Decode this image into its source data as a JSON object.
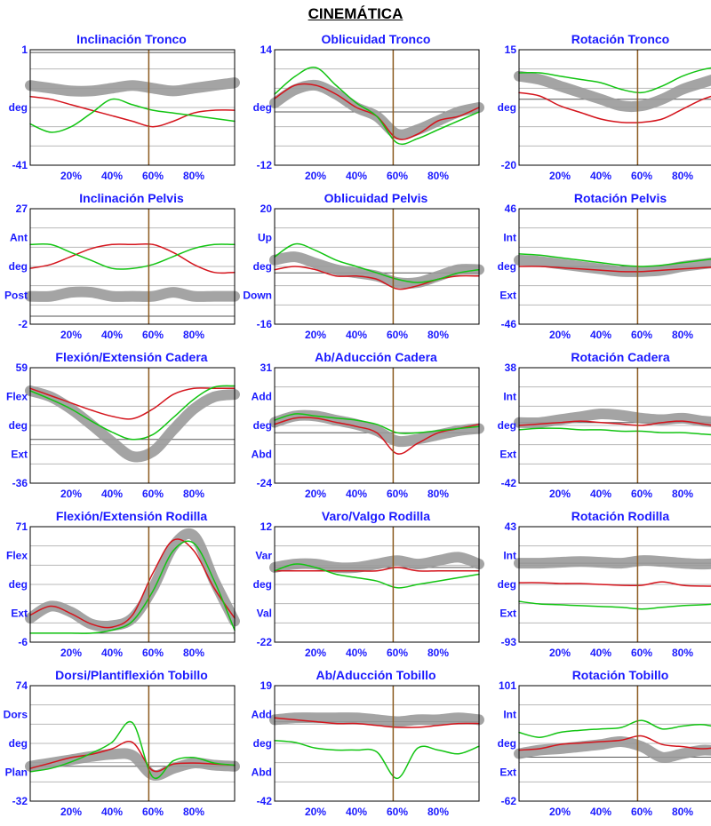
{
  "page": {
    "title": "CINEMÁTICA"
  },
  "colors": {
    "normal_band": "#9a9a9a",
    "left_side": "#d4141c",
    "right_side": "#12c412",
    "toe_off_marker": "#8b5a1e",
    "label_blue": "#1a1aff",
    "grid": "#b8b8b8"
  },
  "chart_data": [
    {
      "type": "line",
      "title": "Inclinación Tronco",
      "ylim": [
        -41,
        1
      ],
      "ylabels": [
        "1",
        "deg",
        "-41"
      ],
      "xticks": [
        "20%",
        "40%",
        "60%",
        "80%"
      ],
      "xlim": [
        0,
        100
      ],
      "marker_x": 58,
      "x": [
        0,
        10,
        20,
        30,
        40,
        50,
        60,
        70,
        80,
        90,
        100
      ],
      "series": [
        {
          "key": "normal",
          "values": [
            -12,
            -13,
            -14,
            -14,
            -13,
            -12,
            -13,
            -14,
            -13,
            -12,
            -11
          ]
        },
        {
          "key": "left",
          "values": [
            -16,
            -17,
            -19,
            -21,
            -23,
            -25,
            -27,
            -25,
            -22,
            -21,
            -21
          ]
        },
        {
          "key": "right",
          "values": [
            -26,
            -29,
            -27,
            -22,
            -17,
            -19,
            -21,
            -22,
            -23,
            -24,
            -25
          ]
        }
      ]
    },
    {
      "type": "line",
      "title": "Oblicuidad Tronco",
      "ylim": [
        -12,
        14
      ],
      "ylabels": [
        "14",
        "deg",
        "-12"
      ],
      "xticks": [
        "20%",
        "40%",
        "60%",
        "80%"
      ],
      "xlim": [
        0,
        100
      ],
      "marker_x": 58,
      "x": [
        0,
        10,
        20,
        30,
        40,
        50,
        60,
        70,
        80,
        90,
        100
      ],
      "series": [
        {
          "key": "normal",
          "values": [
            2,
            5,
            6,
            4,
            1,
            -1,
            -5,
            -4,
            -2,
            0,
            1
          ]
        },
        {
          "key": "left",
          "values": [
            3,
            6,
            6,
            4,
            1,
            -1,
            -6,
            -5,
            -2,
            -1,
            1
          ]
        },
        {
          "key": "right",
          "values": [
            4,
            8,
            10,
            6,
            2,
            -1,
            -7,
            -6,
            -4,
            -2,
            0
          ]
        }
      ]
    },
    {
      "type": "line",
      "title": "Rotación Tronco",
      "ylim": [
        -20,
        15
      ],
      "ylabels": [
        "15",
        "deg",
        "-20"
      ],
      "xticks": [
        "20%",
        "40%",
        "60%",
        "80%"
      ],
      "xlim": [
        0,
        100
      ],
      "marker_x": 58,
      "x": [
        0,
        10,
        20,
        30,
        40,
        50,
        60,
        70,
        80,
        90,
        100
      ],
      "series": [
        {
          "key": "normal",
          "values": [
            7,
            6,
            4,
            2,
            0,
            -2,
            -2,
            0,
            3,
            5,
            7
          ]
        },
        {
          "key": "left",
          "values": [
            2,
            1,
            -2,
            -4,
            -6,
            -7,
            -7,
            -6,
            -3,
            0,
            2
          ]
        },
        {
          "key": "right",
          "values": [
            8,
            8,
            7,
            6,
            5,
            3,
            2,
            4,
            7,
            9,
            10
          ]
        }
      ]
    },
    {
      "type": "line",
      "title": "Inclinación Pelvis",
      "ylim": [
        -2,
        27
      ],
      "ylabels": [
        "27",
        "Ant",
        "deg",
        "Post",
        "-2"
      ],
      "xticks": [
        "20%",
        "40%",
        "60%",
        "80%"
      ],
      "xlim": [
        0,
        100
      ],
      "marker_x": 58,
      "x": [
        0,
        10,
        20,
        30,
        40,
        50,
        60,
        70,
        80,
        90,
        100
      ],
      "series": [
        {
          "key": "normal",
          "values": [
            5,
            5,
            6,
            6,
            5,
            5,
            5,
            6,
            5,
            5,
            5
          ]
        },
        {
          "key": "left",
          "values": [
            12,
            13,
            15,
            17,
            18,
            18,
            18,
            16,
            13,
            11,
            11
          ]
        },
        {
          "key": "right",
          "values": [
            18,
            18,
            16,
            14,
            12,
            12,
            13,
            15,
            17,
            18,
            18
          ]
        }
      ]
    },
    {
      "type": "line",
      "title": "Oblicuidad Pelvis",
      "ylim": [
        -16,
        20
      ],
      "ylabels": [
        "20",
        "Up",
        "deg",
        "Down",
        "-16"
      ],
      "xticks": [
        "20%",
        "40%",
        "60%",
        "80%"
      ],
      "xlim": [
        0,
        100
      ],
      "marker_x": 58,
      "x": [
        0,
        10,
        20,
        30,
        40,
        50,
        60,
        70,
        80,
        90,
        100
      ],
      "series": [
        {
          "key": "normal",
          "values": [
            4,
            5,
            3,
            1,
            0,
            -1,
            -3,
            -3,
            -1,
            1,
            1
          ]
        },
        {
          "key": "left",
          "values": [
            1,
            2,
            1,
            -1,
            -1,
            -2,
            -5,
            -4,
            -2,
            -1,
            -1
          ]
        },
        {
          "key": "right",
          "values": [
            5,
            9,
            7,
            4,
            2,
            0,
            -2,
            -3,
            -2,
            0,
            1
          ]
        }
      ]
    },
    {
      "type": "line",
      "title": "Rotación Pelvis",
      "ylim": [
        -46,
        46
      ],
      "ylabels": [
        "46",
        "Int",
        "deg",
        "Ext",
        "-46"
      ],
      "xticks": [
        "20%",
        "40%",
        "60%",
        "80%"
      ],
      "xlim": [
        0,
        100
      ],
      "marker_x": 58,
      "x": [
        0,
        10,
        20,
        30,
        40,
        50,
        60,
        70,
        80,
        90,
        100
      ],
      "series": [
        {
          "key": "normal",
          "values": [
            5,
            4,
            2,
            0,
            -2,
            -4,
            -4,
            -3,
            0,
            2,
            4
          ]
        },
        {
          "key": "left",
          "values": [
            0,
            0,
            -1,
            -2,
            -3,
            -4,
            -4,
            -3,
            -2,
            -1,
            0
          ]
        },
        {
          "key": "right",
          "values": [
            10,
            9,
            7,
            5,
            3,
            1,
            0,
            1,
            3,
            5,
            7
          ]
        }
      ]
    },
    {
      "type": "line",
      "title": "Flexión/Extensión Cadera",
      "ylim": [
        -36,
        59
      ],
      "ylabels": [
        "59",
        "Flex",
        "deg",
        "Ext",
        "-36"
      ],
      "xticks": [
        "20%",
        "40%",
        "60%",
        "80%"
      ],
      "xlim": [
        0,
        100
      ],
      "marker_x": 58,
      "x": [
        0,
        10,
        20,
        30,
        40,
        50,
        60,
        70,
        80,
        90,
        100
      ],
      "series": [
        {
          "key": "normal",
          "values": [
            40,
            35,
            25,
            12,
            -2,
            -14,
            -10,
            8,
            25,
            35,
            37
          ]
        },
        {
          "key": "left",
          "values": [
            42,
            36,
            30,
            24,
            19,
            17,
            25,
            37,
            42,
            42,
            42
          ]
        },
        {
          "key": "right",
          "values": [
            40,
            33,
            25,
            15,
            6,
            0,
            4,
            18,
            33,
            43,
            44
          ]
        }
      ]
    },
    {
      "type": "line",
      "title": "Ab/Aducción Cadera",
      "ylim": [
        -24,
        31
      ],
      "ylabels": [
        "31",
        "Add",
        "deg",
        "Abd",
        "-24"
      ],
      "xticks": [
        "20%",
        "40%",
        "60%",
        "80%"
      ],
      "xlim": [
        0,
        100
      ],
      "marker_x": 58,
      "x": [
        0,
        10,
        20,
        30,
        40,
        50,
        60,
        70,
        80,
        90,
        100
      ],
      "series": [
        {
          "key": "normal",
          "values": [
            5,
            8,
            8,
            6,
            4,
            1,
            -4,
            -3,
            -1,
            1,
            2
          ]
        },
        {
          "key": "left",
          "values": [
            4,
            7,
            7,
            5,
            3,
            0,
            -10,
            -5,
            0,
            2,
            4
          ]
        },
        {
          "key": "right",
          "values": [
            6,
            9,
            8,
            7,
            6,
            4,
            0,
            0,
            1,
            2,
            3
          ]
        }
      ]
    },
    {
      "type": "line",
      "title": "Rotación Cadera",
      "ylim": [
        -42,
        38
      ],
      "ylabels": [
        "38",
        "Int",
        "deg",
        "Ext",
        "-42"
      ],
      "xticks": [
        "20%",
        "40%",
        "60%",
        "80%"
      ],
      "xlim": [
        0,
        100
      ],
      "marker_x": 58,
      "x": [
        0,
        10,
        20,
        30,
        40,
        50,
        60,
        70,
        80,
        90,
        100
      ],
      "series": [
        {
          "key": "normal",
          "values": [
            0,
            0,
            2,
            4,
            6,
            5,
            3,
            2,
            3,
            1,
            0
          ]
        },
        {
          "key": "left",
          "values": [
            -2,
            -1,
            0,
            1,
            0,
            -1,
            -2,
            0,
            1,
            -1,
            -3
          ]
        },
        {
          "key": "right",
          "values": [
            -5,
            -4,
            -4,
            -5,
            -5,
            -6,
            -6,
            -7,
            -7,
            -8,
            -9
          ]
        }
      ]
    },
    {
      "type": "line",
      "title": "Flexión/Extensión Rodilla",
      "ylim": [
        -6,
        71
      ],
      "ylabels": [
        "71",
        "Flex",
        "deg",
        "Ext",
        "-6"
      ],
      "xticks": [
        "20%",
        "40%",
        "60%",
        "80%"
      ],
      "xlim": [
        0,
        100
      ],
      "marker_x": 58,
      "x": [
        0,
        10,
        20,
        30,
        40,
        50,
        60,
        70,
        80,
        90,
        100
      ],
      "series": [
        {
          "key": "normal",
          "values": [
            10,
            18,
            14,
            6,
            5,
            10,
            30,
            58,
            65,
            35,
            8
          ]
        },
        {
          "key": "left",
          "values": [
            12,
            18,
            13,
            6,
            4,
            12,
            40,
            62,
            55,
            30,
            10
          ]
        },
        {
          "key": "right",
          "values": [
            0,
            0,
            0,
            0,
            2,
            8,
            28,
            55,
            60,
            35,
            2
          ]
        }
      ]
    },
    {
      "type": "line",
      "title": "Varo/Valgo Rodilla",
      "ylim": [
        -22,
        12
      ],
      "ylabels": [
        "12",
        "Var",
        "deg",
        "Val",
        "-22"
      ],
      "xticks": [
        "20%",
        "40%",
        "60%",
        "80%"
      ],
      "xlim": [
        0,
        100
      ],
      "marker_x": 58,
      "x": [
        0,
        10,
        20,
        30,
        40,
        50,
        60,
        70,
        80,
        90,
        100
      ],
      "series": [
        {
          "key": "normal",
          "values": [
            0,
            1,
            1,
            0,
            0,
            1,
            2,
            1,
            2,
            3,
            1
          ]
        },
        {
          "key": "left",
          "values": [
            -1,
            -1,
            -1,
            -1,
            -1,
            -1,
            0,
            -1,
            -1,
            -1,
            -1
          ]
        },
        {
          "key": "right",
          "values": [
            -1,
            1,
            0,
            -2,
            -3,
            -4,
            -6,
            -5,
            -4,
            -3,
            -2
          ]
        }
      ]
    },
    {
      "type": "line",
      "title": "Rotación Rodilla",
      "ylim": [
        -93,
        43
      ],
      "ylabels": [
        "43",
        "Int",
        "deg",
        "Ext",
        "-93"
      ],
      "xticks": [
        "20%",
        "40%",
        "60%",
        "80%"
      ],
      "xlim": [
        0,
        100
      ],
      "marker_x": 58,
      "x": [
        0,
        10,
        20,
        30,
        40,
        50,
        60,
        70,
        80,
        90,
        100
      ],
      "series": [
        {
          "key": "normal",
          "values": [
            0,
            0,
            1,
            2,
            1,
            0,
            3,
            2,
            0,
            -1,
            0
          ]
        },
        {
          "key": "left",
          "values": [
            -23,
            -23,
            -24,
            -24,
            -25,
            -26,
            -26,
            -22,
            -26,
            -27,
            -27
          ]
        },
        {
          "key": "right",
          "values": [
            -45,
            -48,
            -49,
            -50,
            -51,
            -52,
            -54,
            -52,
            -50,
            -49,
            -47
          ]
        }
      ]
    },
    {
      "type": "line",
      "title": "Dorsi/Plantiflexión Tobillo",
      "ylim": [
        -32,
        74
      ],
      "ylabels": [
        "74",
        "Dors",
        "deg",
        "Plan",
        "-32"
      ],
      "xticks": [
        "20%",
        "40%",
        "60%",
        "80%"
      ],
      "xlim": [
        0,
        100
      ],
      "marker_x": 58,
      "x": [
        0,
        10,
        20,
        30,
        40,
        50,
        60,
        70,
        80,
        90,
        100
      ],
      "series": [
        {
          "key": "normal",
          "values": [
            0,
            3,
            6,
            9,
            11,
            10,
            -8,
            -2,
            3,
            1,
            0
          ]
        },
        {
          "key": "left",
          "values": [
            -2,
            3,
            8,
            11,
            16,
            22,
            -4,
            2,
            3,
            2,
            1
          ]
        },
        {
          "key": "right",
          "values": [
            -5,
            -2,
            4,
            12,
            22,
            40,
            -10,
            5,
            8,
            3,
            1
          ]
        }
      ]
    },
    {
      "type": "line",
      "title": "Ab/Aducción Tobillo",
      "ylim": [
        -42,
        19
      ],
      "ylabels": [
        "19",
        "Add",
        "deg",
        "Abd",
        "-42"
      ],
      "xticks": [
        "20%",
        "40%",
        "60%",
        "80%"
      ],
      "xlim": [
        0,
        100
      ],
      "marker_x": 58,
      "x": [
        0,
        10,
        20,
        30,
        40,
        50,
        60,
        70,
        80,
        90,
        100
      ],
      "series": [
        {
          "key": "normal",
          "values": [
            1,
            2,
            2,
            2,
            2,
            1,
            0,
            1,
            1,
            2,
            1
          ]
        },
        {
          "key": "left",
          "values": [
            2,
            1,
            0,
            -1,
            -1,
            -2,
            -3,
            -3,
            -2,
            -1,
            -1
          ]
        },
        {
          "key": "right",
          "values": [
            -10,
            -11,
            -14,
            -15,
            -15,
            -16,
            -30,
            -14,
            -15,
            -17,
            -13
          ]
        }
      ]
    },
    {
      "type": "line",
      "title": "Rotación Tobillo",
      "ylim": [
        -62,
        101
      ],
      "ylabels": [
        "101",
        "Int",
        "deg",
        "Ext",
        "-62"
      ],
      "xticks": [
        "20%",
        "40%",
        "60%",
        "80%"
      ],
      "xlim": [
        0,
        100
      ],
      "marker_x": 58,
      "x": [
        0,
        10,
        20,
        30,
        40,
        50,
        60,
        70,
        80,
        90,
        100
      ],
      "series": [
        {
          "key": "normal",
          "values": [
            5,
            10,
            12,
            15,
            18,
            22,
            15,
            0,
            5,
            10,
            8
          ]
        },
        {
          "key": "left",
          "values": [
            10,
            12,
            18,
            20,
            22,
            24,
            30,
            18,
            15,
            12,
            15
          ]
        },
        {
          "key": "right",
          "values": [
            35,
            28,
            35,
            38,
            40,
            42,
            52,
            40,
            44,
            46,
            40
          ]
        }
      ]
    }
  ]
}
